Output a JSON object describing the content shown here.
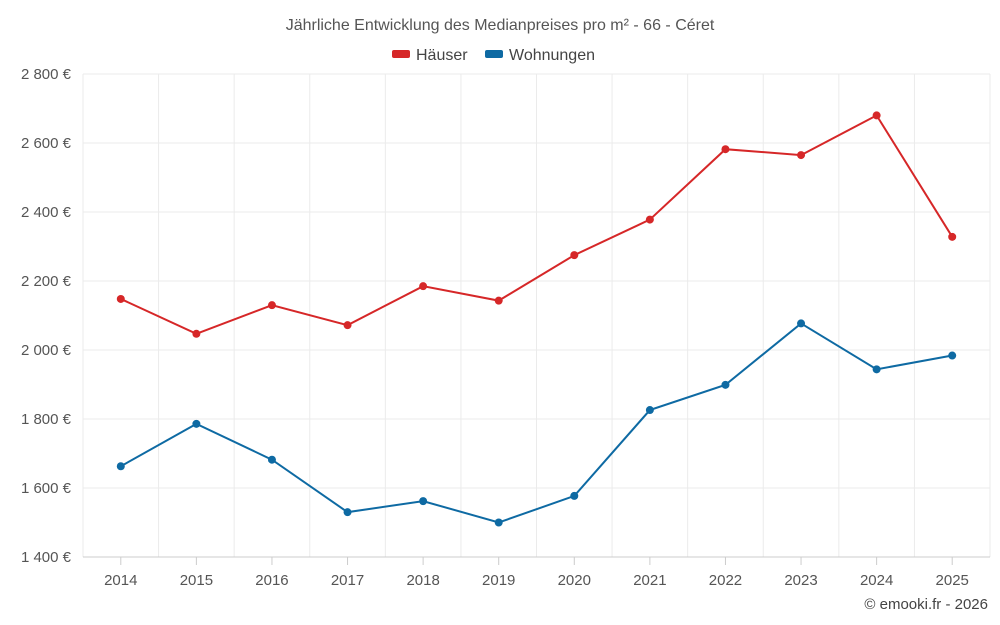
{
  "chart_data": {
    "type": "line",
    "title": "Jährliche Entwicklung des Medianpreises pro m² - 66 - Céret",
    "categories": [
      "2014",
      "2015",
      "2016",
      "2017",
      "2018",
      "2019",
      "2020",
      "2021",
      "2022",
      "2023",
      "2024",
      "2025"
    ],
    "series": [
      {
        "name": "Häuser",
        "color": "#d62728",
        "values": [
          2148,
          2047,
          2130,
          2072,
          2185,
          2143,
          2275,
          2378,
          2582,
          2565,
          2680,
          2328
        ]
      },
      {
        "name": "Wohnungen",
        "color": "#0e6aa3",
        "values": [
          1663,
          1786,
          1682,
          1530,
          1562,
          1500,
          1577,
          1826,
          1899,
          2077,
          1944,
          1984
        ]
      }
    ],
    "ylim": [
      1400,
      2800
    ],
    "yticks": [
      1400,
      1600,
      1800,
      2000,
      2200,
      2400,
      2600,
      2800
    ],
    "ytick_labels": [
      "1 400 €",
      "1 600 €",
      "1 800 €",
      "2 000 €",
      "2 200 €",
      "2 400 €",
      "2 600 €",
      "2 800 €"
    ],
    "legend": "top-center",
    "grid": true
  },
  "credit": "© emooki.fr - 2026"
}
